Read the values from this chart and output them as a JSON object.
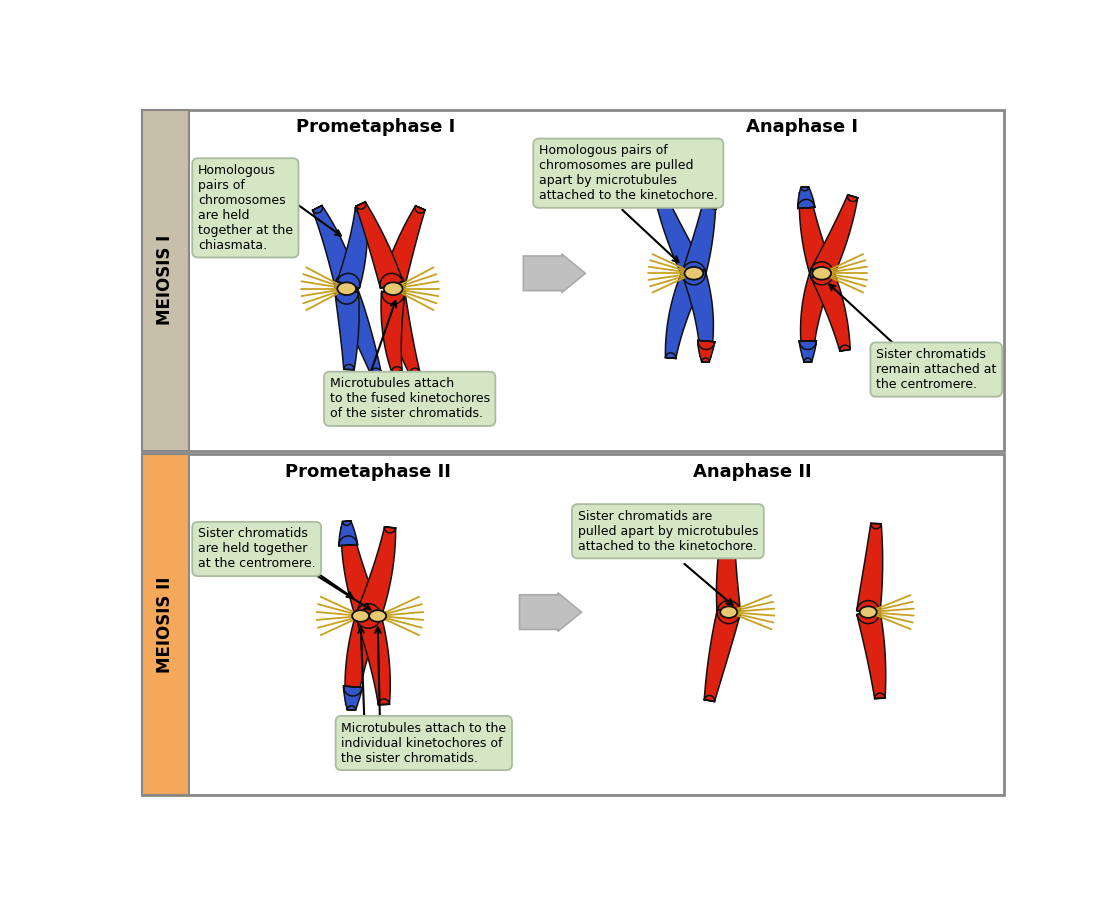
{
  "meiosis_I_color": "#c8bfaa",
  "meiosis_II_color": "#f5a85a",
  "label_bg_color": "#d4e6c3",
  "border_color": "#888888",
  "blue_chr": "#3355cc",
  "red_chr": "#dd2211",
  "centromere_color": "#e8c870",
  "microtubule_color": "#c8a020",
  "text_color": "#111111",
  "title_I_left": "Prometaphase I",
  "title_I_right": "Anaphase I",
  "title_II_left": "Prometaphase II",
  "title_II_right": "Anaphase II",
  "label_meiosis_I": "MEIOSIS I",
  "label_meiosis_II": "MEIOSIS II",
  "ann1": "Homologous\npairs of\nchromosomes\nare held\ntogether at the\nchiasmata.",
  "ann2": "Microtubules attach\nto the fused kinetochores\nof the sister chromatids.",
  "ann3": "Homologous pairs of\nchromosomes are pulled\napart by microtubules\nattached to the kinetochore.",
  "ann4": "Sister chromatids\nremain attached at\nthe centromere.",
  "ann5": "Sister chromatids\nare held together\nat the centromere.",
  "ann6": "Microtubules attach to the\nindividual kinetochores of\nthe sister chromatids.",
  "ann7": "Sister chromatids are\npulled apart by microtubules\nattached to the kinetochore.",
  "outline_color": "#111111"
}
